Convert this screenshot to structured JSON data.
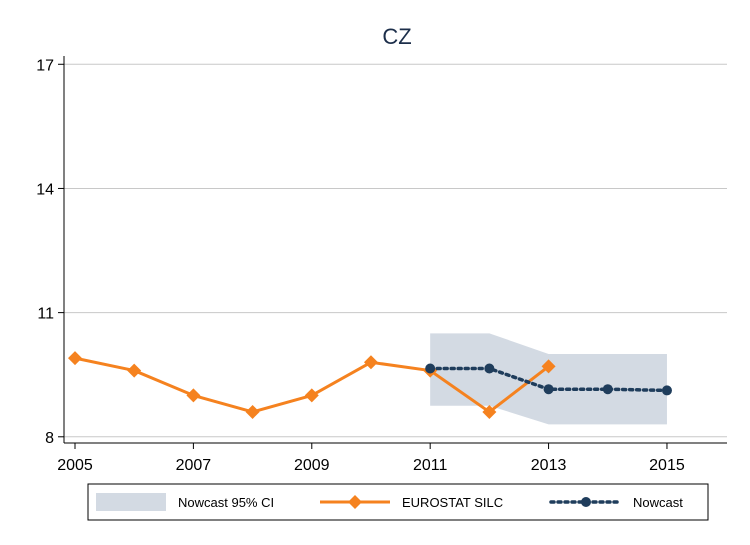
{
  "chart_data": {
    "type": "line",
    "title": "CZ",
    "xlabel": "",
    "ylabel": "",
    "xlim": [
      2005,
      2016.2
    ],
    "ylim": [
      7.85,
      17.2
    ],
    "x_ticks": [
      2005,
      2007,
      2009,
      2011,
      2013,
      2015
    ],
    "y_ticks": [
      8,
      11,
      14,
      17
    ],
    "grid": true,
    "legend_position": "bottom",
    "series": [
      {
        "name": "Nowcast 95% CI",
        "kind": "band",
        "color": "#d3dae3",
        "x": [
          2011,
          2012,
          2013,
          2014,
          2015
        ],
        "lower": [
          8.75,
          8.75,
          8.3,
          8.3,
          8.3
        ],
        "upper": [
          10.5,
          10.5,
          10.0,
          10.0,
          10.0
        ]
      },
      {
        "name": "EUROSTAT SILC",
        "kind": "line",
        "marker": "diamond",
        "color": "#f5821f",
        "x": [
          2005,
          2006,
          2007,
          2008,
          2009,
          2010,
          2011,
          2012,
          2013
        ],
        "values": [
          9.9,
          9.6,
          9.0,
          8.6,
          9.0,
          9.8,
          9.6,
          8.6,
          9.7
        ]
      },
      {
        "name": "Nowcast",
        "kind": "dotted-line",
        "marker": "circle",
        "color": "#1f3d5c",
        "x": [
          2011,
          2012,
          2013,
          2014,
          2015
        ],
        "values": [
          9.65,
          9.65,
          9.15,
          9.15,
          9.12
        ]
      }
    ]
  }
}
